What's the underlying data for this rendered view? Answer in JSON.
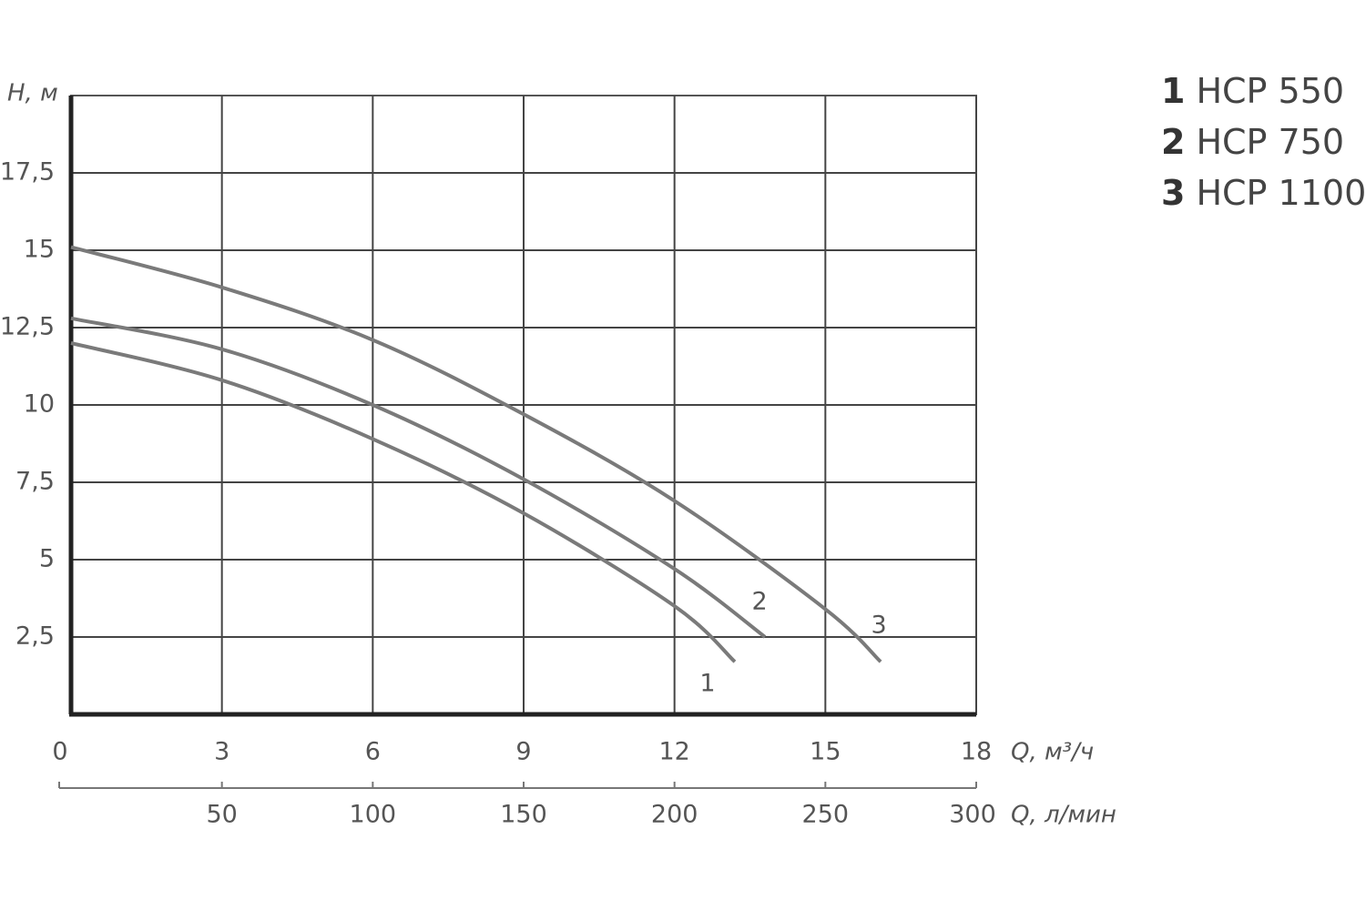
{
  "chart_data": {
    "type": "line",
    "y_label": "H, м",
    "x_label": "Q, м³/ч",
    "x2_label": "Q, л/мин",
    "xlim": [
      0,
      18
    ],
    "xticks": [
      0,
      3,
      6,
      9,
      12,
      15,
      18
    ],
    "x2lim": [
      0,
      300
    ],
    "x2ticks": [
      50,
      100,
      150,
      200,
      250,
      300
    ],
    "ylim": [
      0,
      20
    ],
    "yticks": [
      {
        "value": 2.5,
        "label": "2,5"
      },
      5,
      {
        "value": 7.5,
        "label": "7,5"
      },
      10,
      {
        "value": 12.5,
        "label": "12,5"
      },
      15,
      {
        "value": 17.5,
        "label": "17,5"
      }
    ],
    "grid": true,
    "series": [
      {
        "label": "1",
        "name": "HCP 550",
        "color": "#7a7a7a",
        "x": [
          0,
          3,
          6,
          9,
          12,
          13.2
        ],
        "values": [
          12.0,
          10.8,
          8.9,
          6.5,
          3.5,
          1.7
        ]
      },
      {
        "label": "2",
        "name": "HCP 750",
        "color": "#7a7a7a",
        "x": [
          0,
          3,
          6,
          9,
          12,
          13.8
        ],
        "values": [
          12.8,
          11.8,
          10.0,
          7.6,
          4.7,
          2.5
        ]
      },
      {
        "label": "3",
        "name": "HCP 1100",
        "color": "#7a7a7a",
        "x": [
          0,
          3,
          6,
          9,
          12,
          15,
          16.1
        ],
        "values": [
          15.1,
          13.8,
          12.1,
          9.7,
          6.9,
          3.4,
          1.7
        ]
      }
    ]
  }
}
